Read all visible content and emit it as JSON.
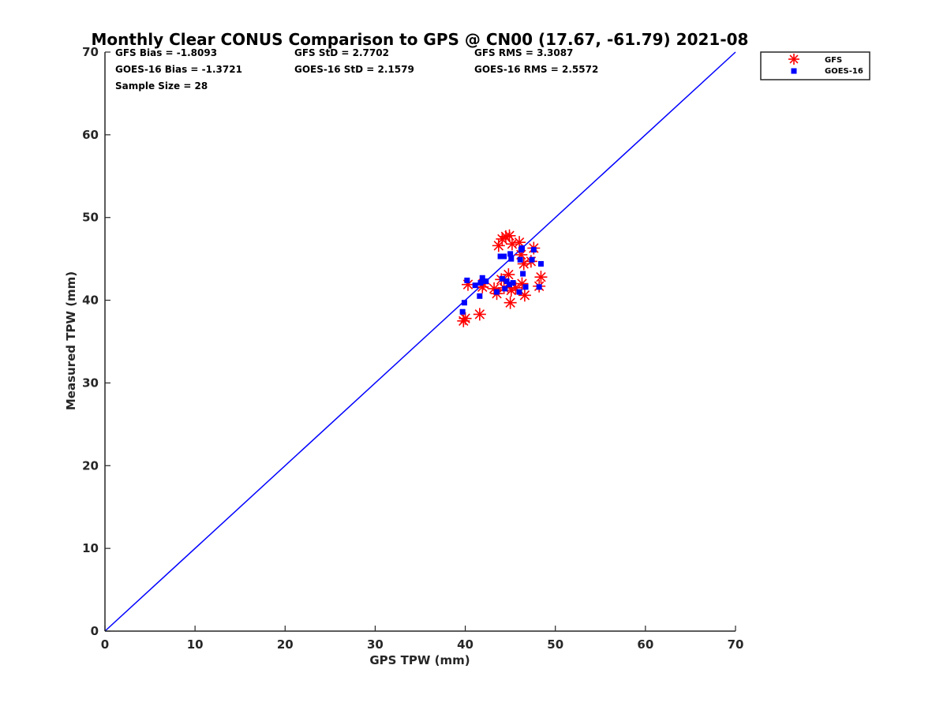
{
  "colors": {
    "gfs": "#ff0000",
    "goes": "#0000ff",
    "line": "#0000ff",
    "axis": "#262626"
  },
  "chart_data": {
    "type": "scatter",
    "title": "Monthly Clear CONUS Comparison to GPS @ CN00 (17.67, -61.79) 2021-08",
    "xlabel": "GPS TPW (mm)",
    "ylabel": "Measured TPW (mm)",
    "xlim": [
      0,
      70
    ],
    "ylim": [
      0,
      70
    ],
    "xticks": [
      0,
      10,
      20,
      30,
      40,
      50,
      60,
      70
    ],
    "yticks": [
      0,
      10,
      20,
      30,
      40,
      50,
      60,
      70
    ],
    "reference_line": {
      "x": [
        0,
        70
      ],
      "y": [
        0,
        70
      ]
    },
    "stats": {
      "gfs_bias": "GFS Bias = -1.8093",
      "goes_bias": "GOES-16 Bias = -1.3721",
      "sample_size": "Sample Size = 28",
      "gfs_std": "GFS StD = 2.7702",
      "goes_std": "GOES-16 StD = 2.1579",
      "gfs_rms": "GFS RMS = 3.3087",
      "goes_rms": "GOES-16 RMS = 2.5572"
    },
    "legend": {
      "position": "top-right",
      "entries": [
        "GFS",
        "GOES-16"
      ]
    },
    "series": [
      {
        "name": "GFS",
        "marker": "asterisk",
        "points": [
          [
            39.8,
            37.5
          ],
          [
            40.0,
            37.8
          ],
          [
            40.3,
            41.9
          ],
          [
            41.6,
            38.3
          ],
          [
            41.9,
            41.6
          ],
          [
            43.5,
            40.8
          ],
          [
            43.7,
            46.6
          ],
          [
            44.1,
            47.4
          ],
          [
            44.3,
            41.5
          ],
          [
            44.5,
            47.7
          ],
          [
            44.8,
            43.1
          ],
          [
            44.9,
            47.8
          ],
          [
            45.0,
            39.7
          ],
          [
            45.1,
            41.2
          ],
          [
            45.2,
            46.8
          ],
          [
            45.6,
            41.5
          ],
          [
            46.2,
            45.5
          ],
          [
            46.3,
            42.0
          ],
          [
            46.5,
            44.4
          ],
          [
            46.6,
            40.6
          ],
          [
            47.3,
            44.7
          ],
          [
            47.6,
            46.3
          ],
          [
            48.2,
            41.7
          ],
          [
            48.4,
            42.8
          ],
          [
            42.0,
            42.0
          ],
          [
            44.0,
            42.5
          ],
          [
            46.0,
            47.0
          ],
          [
            43.2,
            41.4
          ]
        ]
      },
      {
        "name": "GOES-16",
        "marker": "square",
        "points": [
          [
            39.7,
            38.6
          ],
          [
            39.9,
            39.7
          ],
          [
            40.2,
            42.4
          ],
          [
            41.1,
            41.8
          ],
          [
            41.6,
            40.5
          ],
          [
            41.7,
            42.1
          ],
          [
            41.9,
            42.7
          ],
          [
            43.5,
            41.0
          ],
          [
            43.9,
            45.3
          ],
          [
            44.1,
            42.6
          ],
          [
            44.3,
            45.3
          ],
          [
            44.6,
            42.3
          ],
          [
            44.9,
            41.9
          ],
          [
            45.0,
            45.6
          ],
          [
            45.1,
            45.0
          ],
          [
            45.3,
            42.1
          ],
          [
            46.0,
            41.0
          ],
          [
            46.1,
            44.9
          ],
          [
            46.3,
            46.3
          ],
          [
            46.4,
            43.2
          ],
          [
            46.7,
            41.6
          ],
          [
            47.4,
            44.9
          ],
          [
            47.6,
            46.1
          ],
          [
            48.2,
            41.6
          ],
          [
            48.4,
            44.4
          ],
          [
            42.3,
            42.3
          ],
          [
            44.4,
            41.4
          ],
          [
            46.2,
            46.1
          ]
        ]
      }
    ]
  }
}
